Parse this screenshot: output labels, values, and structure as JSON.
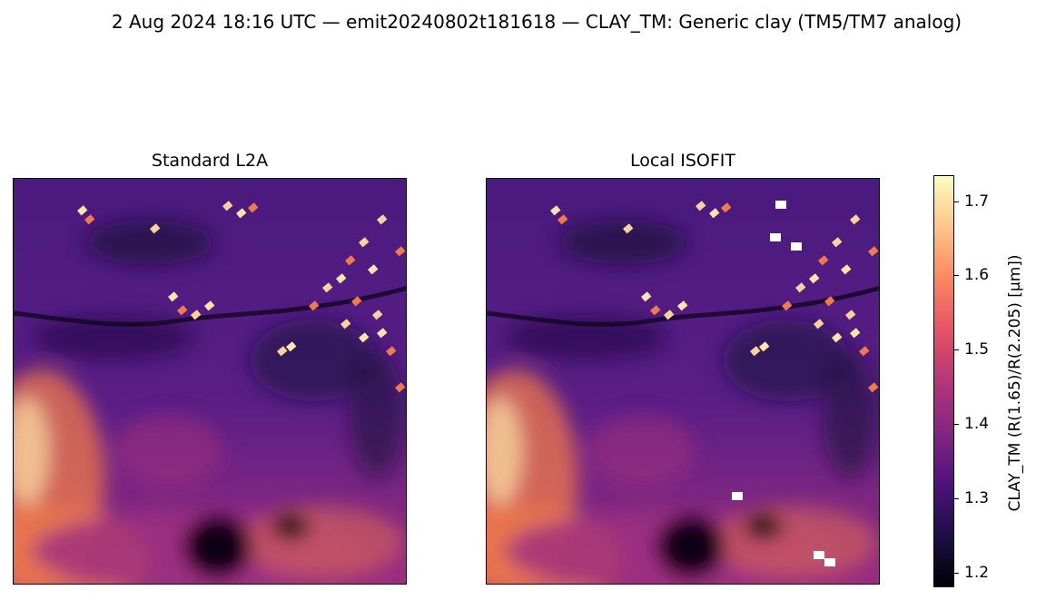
{
  "suptitle": "2 Aug 2024 18:16 UTC — emit20240802t181618 — CLAY_TM: Generic clay (TM5/TM7 analog)",
  "chart_data": {
    "type": "heatmap",
    "panels": [
      {
        "title": "Standard L2A"
      },
      {
        "title": "Local ISOFIT"
      }
    ],
    "colormap": "magma",
    "colorbar": {
      "label": "CLAY_TM  (R(1.65)/R(2.205)  [µm])",
      "vmin": 1.18,
      "vmax": 1.735,
      "ticks": [
        "1.2",
        "1.3",
        "1.4",
        "1.5",
        "1.6",
        "1.7"
      ]
    },
    "axes": {
      "ticks_visible": false
    }
  },
  "colors": {
    "deep": "#1a0c3a",
    "purple": "#4a1a7e",
    "magenta": "#9c2e7f",
    "orange": "#f07a4a",
    "cream": "#fde6a8"
  }
}
